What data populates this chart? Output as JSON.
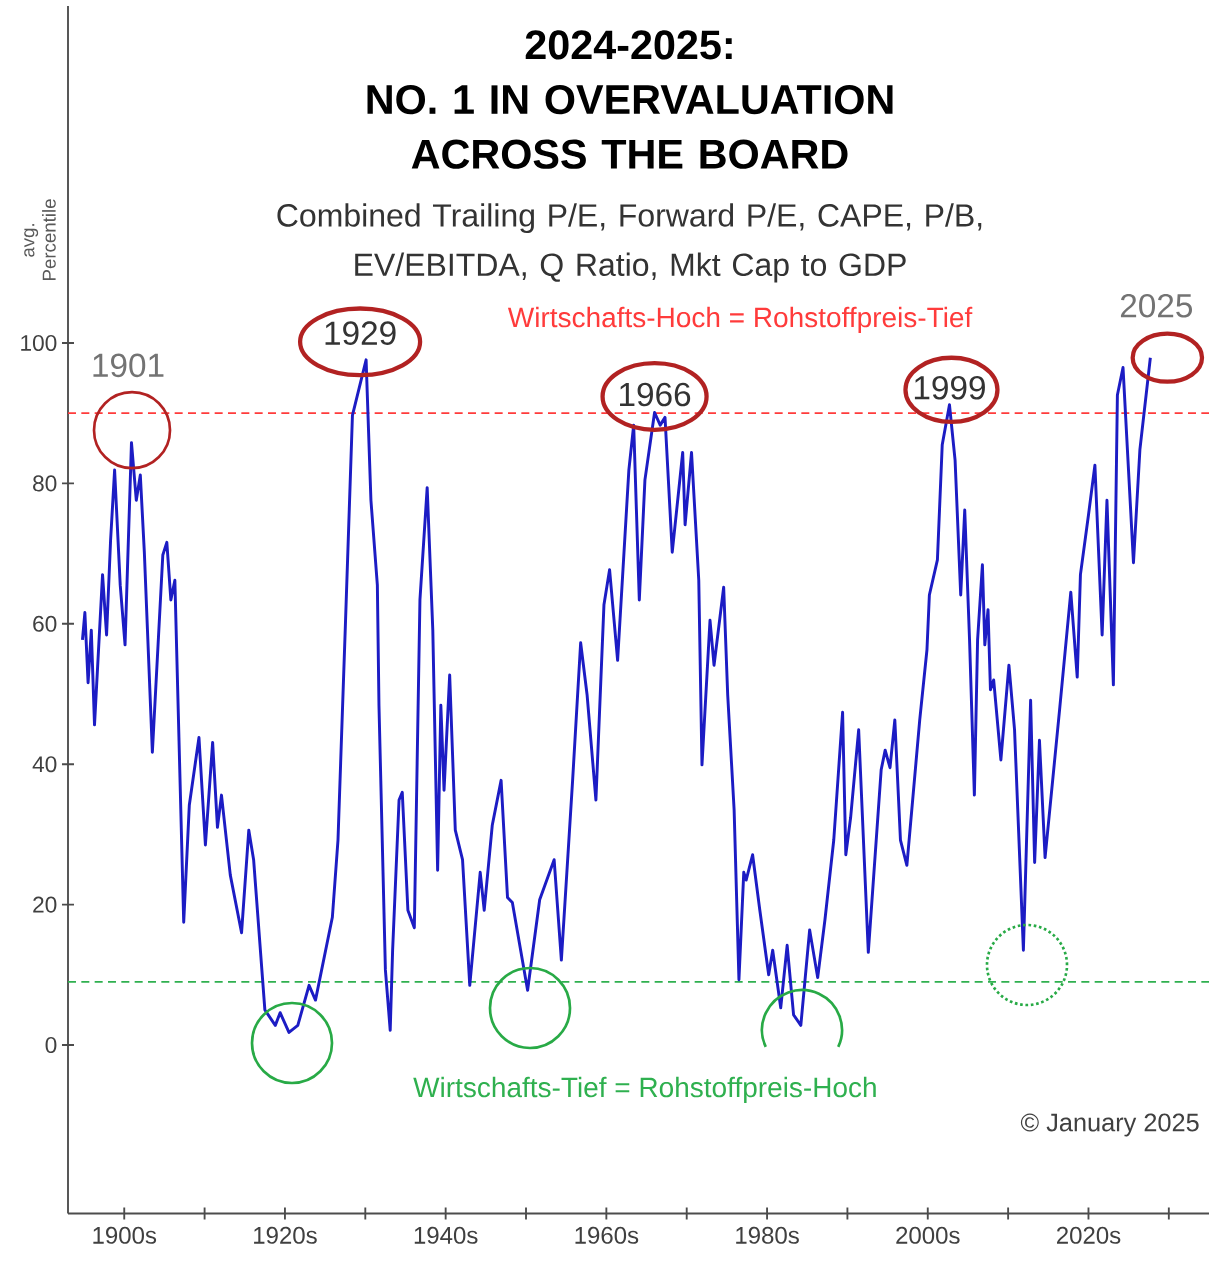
{
  "chart_data": {
    "type": "line",
    "title": "2024-2025:\nNO. 1 IN OVERVALUATION\nACROSS THE BOARD",
    "subtitle": "Combined Trailing P/E, Forward P/E, CAPE, P/B,\nEV/EBITDA, Q Ratio, Mkt Cap to GDP",
    "ylabel": "avg.\nPercentile",
    "x": [
      1894.8,
      1895.1,
      1895.5,
      1895.9,
      1896.3,
      1897.3,
      1897.8,
      1898.3,
      1898.8,
      1899.5,
      1900.1,
      1900.9,
      1901.5,
      1902.0,
      1902.5,
      1903.5,
      1904.8,
      1905.3,
      1905.8,
      1906.3,
      1907.4,
      1908.1,
      1909.3,
      1910.1,
      1911.0,
      1911.6,
      1912.1,
      1913.2,
      1914.6,
      1915.5,
      1916.1,
      1917.5,
      1918.8,
      1919.4,
      1920.5,
      1921.6,
      1923.0,
      1923.8,
      1925.9,
      1926.6,
      1927.5,
      1928.4,
      1930.1,
      1930.7,
      1931.5,
      1931.7,
      1932.5,
      1933.1,
      1933.4,
      1934.2,
      1934.6,
      1935.3,
      1936.1,
      1936.8,
      1937.7,
      1938.4,
      1939.0,
      1939.4,
      1939.8,
      1940.5,
      1941.2,
      1942.1,
      1943.0,
      1944.3,
      1944.8,
      1945.8,
      1946.9,
      1947.7,
      1948.3,
      1950.2,
      1951.7,
      1953.5,
      1954.4,
      1955.8,
      1956.8,
      1957.6,
      1958.7,
      1959.7,
      1960.4,
      1961.4,
      1962.8,
      1963.4,
      1964.1,
      1964.8,
      1966.0,
      1966.7,
      1967.3,
      1968.2,
      1969.5,
      1969.8,
      1970.6,
      1971.5,
      1971.9,
      1972.9,
      1973.4,
      1974.6,
      1975.1,
      1975.9,
      1976.5,
      1977.1,
      1977.4,
      1978.2,
      1979.1,
      1980.2,
      1980.7,
      1981.7,
      1982.5,
      1983.3,
      1984.2,
      1985.3,
      1986.3,
      1987.2,
      1988.3,
      1989.4,
      1989.8,
      1990.4,
      1991.4,
      1992.6,
      1994.2,
      1994.7,
      1995.3,
      1995.9,
      1996.6,
      1997.4,
      1999.0,
      1999.9,
      2000.2,
      2001.2,
      2001.8,
      2002.7,
      2003.4,
      2004.1,
      2004.6,
      2005.2,
      2005.8,
      2006.2,
      2006.8,
      2007.1,
      2007.5,
      2007.8,
      2008.2,
      2009.1,
      2010.1,
      2010.8,
      2011.9,
      2012.8,
      2013.3,
      2013.9,
      2014.6,
      2016.4,
      2017.8,
      2018.6,
      2019.0,
      2020.0,
      2020.8,
      2021.7,
      2022.3,
      2023.1,
      2023.6,
      2024.3,
      2025.6,
      2026.4,
      2027.7
    ],
    "values": [
      57.7,
      61.6,
      51.6,
      59.1,
      45.6,
      67.0,
      58.4,
      71.9,
      81.9,
      65.5,
      57.0,
      85.8,
      77.6,
      81.2,
      70.2,
      41.7,
      69.8,
      71.6,
      63.4,
      66.2,
      17.5,
      34.2,
      43.8,
      28.5,
      43.1,
      31.0,
      35.6,
      24.2,
      16.0,
      30.6,
      26.4,
      5.0,
      2.8,
      4.6,
      1.8,
      2.8,
      8.5,
      6.4,
      18.2,
      29.2,
      59.1,
      89.7,
      97.6,
      77.6,
      65.5,
      48.4,
      10.7,
      2.1,
      13.5,
      34.9,
      36.0,
      19.2,
      16.7,
      63.4,
      79.4,
      59.1,
      24.9,
      48.4,
      36.3,
      52.7,
      30.6,
      26.4,
      8.5,
      24.6,
      19.2,
      31.3,
      37.7,
      21.0,
      20.3,
      7.8,
      20.7,
      26.4,
      12.1,
      37.7,
      57.3,
      49.9,
      34.9,
      62.7,
      67.7,
      54.8,
      81.9,
      88.3,
      63.4,
      80.5,
      90.1,
      88.3,
      89.4,
      70.2,
      84.4,
      74.1,
      84.4,
      66.2,
      39.9,
      60.5,
      54.1,
      65.2,
      49.9,
      33.5,
      9.3,
      24.6,
      23.5,
      27.1,
      19.2,
      10.0,
      13.5,
      5.3,
      14.2,
      4.3,
      2.8,
      16.4,
      9.6,
      17.8,
      29.2,
      47.4,
      27.1,
      32.4,
      44.9,
      13.2,
      39.2,
      42.0,
      39.5,
      46.3,
      29.2,
      25.6,
      46.3,
      56.3,
      64.1,
      69.1,
      85.5,
      91.2,
      83.3,
      64.1,
      76.2,
      57.7,
      35.6,
      57.7,
      68.4,
      57.0,
      62.0,
      50.6,
      52.0,
      40.6,
      54.1,
      44.9,
      13.5,
      49.1,
      26.0,
      43.4,
      26.7,
      47.7,
      64.5,
      52.4,
      67.0,
      75.5,
      82.6,
      58.4,
      77.6,
      51.3,
      92.6,
      96.5,
      68.7,
      84.8,
      97.9
    ],
    "color": "#1c1cc4",
    "line_style": "solid",
    "xlim": [
      1893,
      2035
    ],
    "ylim": [
      -24,
      148
    ],
    "xticks": [
      {
        "value": 1900,
        "label": "1900s"
      },
      {
        "value": 1910,
        "label": null
      },
      {
        "value": 1920,
        "label": "1920s"
      },
      {
        "value": 1930,
        "label": null
      },
      {
        "value": 1940,
        "label": "1940s"
      },
      {
        "value": 1950,
        "label": null
      },
      {
        "value": 1960,
        "label": "1960s"
      },
      {
        "value": 1970,
        "label": null
      },
      {
        "value": 1980,
        "label": "1980s"
      },
      {
        "value": 1990,
        "label": null
      },
      {
        "value": 2000,
        "label": "2000s"
      },
      {
        "value": 2010,
        "label": null
      },
      {
        "value": 2020,
        "label": "2020s"
      },
      {
        "value": 2030,
        "label": null
      }
    ],
    "yticks": [
      0,
      20,
      40,
      60,
      80,
      100
    ],
    "ref_lines": [
      {
        "axis": "y",
        "value": 90,
        "label": "Wirtschafts-Hoch = Rohstoffpreis-Tief",
        "color": "#ff3b3b",
        "line_style": "dashed"
      },
      {
        "axis": "y",
        "value": 9,
        "label": "Wirtschafts-Tief = Rohstoffpreis-Hoch",
        "color": "#2fb04f",
        "line_style": "dashed"
      }
    ],
    "annotations": [
      {
        "text": "1901",
        "x": 1900.9,
        "y": 85.8
      },
      {
        "text": "1929",
        "x": 1930.1,
        "y": 97.6
      },
      {
        "text": "1966",
        "x": 1966.0,
        "y": 90.1
      },
      {
        "text": "1999",
        "x": 2002.7,
        "y": 91.2
      },
      {
        "text": "2025",
        "x": 2027.7,
        "y": 97.9
      },
      "© January 2025"
    ]
  }
}
